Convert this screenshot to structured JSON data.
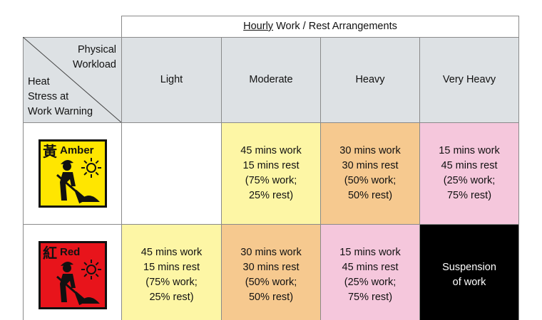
{
  "table": {
    "title_underlined": "Hourly",
    "title": "Work / Rest Arrangements",
    "corner_top": [
      "Physical",
      "Workload"
    ],
    "corner_bottom": [
      "Heat",
      "Stress at",
      "Work Warning"
    ],
    "columns": [
      "Light",
      "Moderate",
      "Heavy",
      "Very Heavy"
    ],
    "rows": [
      {
        "icon_char": "黃",
        "icon_label": "Amber",
        "cells": [
          null,
          [
            "45 mins work",
            "15 mins rest",
            "(75% work;",
            "25% rest)"
          ],
          [
            "30 mins work",
            "30 mins rest",
            "(50% work;",
            "50% rest)"
          ],
          [
            "15 mins work",
            "45 mins rest",
            "(25% work;",
            "75% rest)"
          ]
        ]
      },
      {
        "icon_char": "紅",
        "icon_label": "Red",
        "cells": [
          [
            "45 mins work",
            "15 mins rest",
            "(75% work;",
            "25% rest)"
          ],
          [
            "30 mins work",
            "30 mins rest",
            "(50% work;",
            "50% rest)"
          ],
          [
            "15 mins work",
            "45 mins rest",
            "(25% work;",
            "75% rest)"
          ],
          [
            "Suspension",
            "of work"
          ]
        ]
      }
    ]
  }
}
